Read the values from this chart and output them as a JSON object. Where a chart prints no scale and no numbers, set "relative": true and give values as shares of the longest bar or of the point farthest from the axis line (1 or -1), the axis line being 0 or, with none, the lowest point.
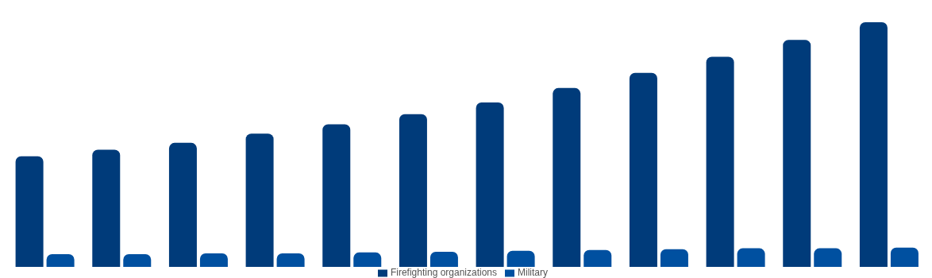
{
  "chart_data": {
    "type": "bar",
    "relative": true,
    "categories": [
      null,
      null,
      null,
      null,
      null,
      null,
      null,
      null,
      null,
      null,
      null,
      null
    ],
    "legend": "bottom",
    "series": [
      {
        "name": "Firefighting organizations",
        "color": "#003b7a",
        "values": [
          0.452,
          0.479,
          0.507,
          0.545,
          0.583,
          0.624,
          0.672,
          0.731,
          0.793,
          0.859,
          0.928,
          1
        ]
      },
      {
        "name": "Military",
        "color": "#0050a0",
        "values": [
          0.052,
          0.052,
          0.055,
          0.055,
          0.059,
          0.062,
          0.066,
          0.069,
          0.072,
          0.076,
          0.076,
          0.079
        ]
      }
    ]
  }
}
